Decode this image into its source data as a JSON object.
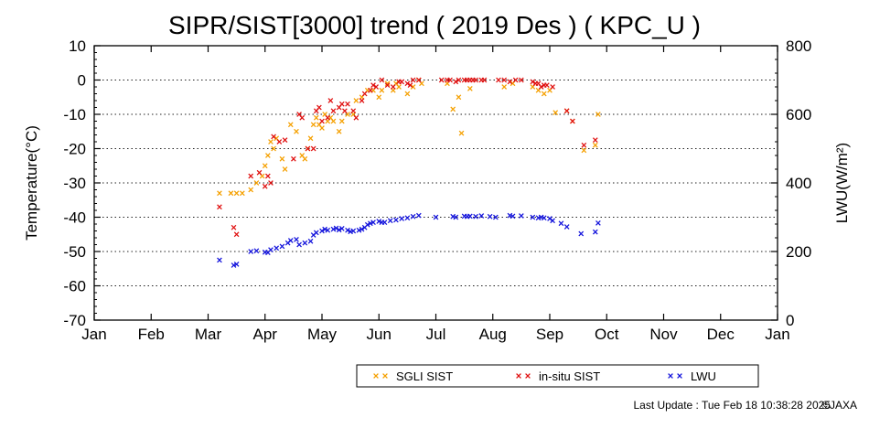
{
  "chart_data": {
    "type": "scatter",
    "title": "SIPR/SIST[3000] trend ( 2019 Des ) ( KPC_U )",
    "ylabel": "Temperature(°C)",
    "y2label": "LWU(W/m²)",
    "ylim": [
      -70,
      10
    ],
    "yticks": [
      10,
      0,
      -10,
      -20,
      -30,
      -40,
      -50,
      -60,
      -70
    ],
    "y2lim": [
      0,
      800
    ],
    "y2ticks": [
      800,
      600,
      400,
      200,
      0
    ],
    "xlim": [
      0,
      12
    ],
    "xticks": [
      "Jan",
      "Feb",
      "Mar",
      "Apr",
      "May",
      "Jun",
      "Jul",
      "Aug",
      "Sep",
      "Oct",
      "Nov",
      "Dec",
      "Jan"
    ],
    "grid": "horizontal dotted",
    "legend_position": "bottom-right",
    "colors": {
      "sgli": "#f5a000",
      "insitu": "#e01010",
      "lwu": "#1414dc"
    },
    "series": [
      {
        "name": "SGLI SIST",
        "axis": "left",
        "color": "#f5a000",
        "points": [
          [
            2.2,
            -33
          ],
          [
            2.4,
            -33
          ],
          [
            2.5,
            -33
          ],
          [
            2.6,
            -33
          ],
          [
            2.75,
            -32
          ],
          [
            2.85,
            -30
          ],
          [
            2.95,
            -28
          ],
          [
            3.0,
            -25
          ],
          [
            3.05,
            -22
          ],
          [
            3.1,
            -18
          ],
          [
            3.15,
            -20
          ],
          [
            3.2,
            -17
          ],
          [
            3.3,
            -23
          ],
          [
            3.35,
            -26
          ],
          [
            3.45,
            -13
          ],
          [
            3.55,
            -15
          ],
          [
            3.65,
            -22
          ],
          [
            3.7,
            -23
          ],
          [
            3.75,
            -20
          ],
          [
            3.8,
            -17
          ],
          [
            3.85,
            -13
          ],
          [
            3.9,
            -11
          ],
          [
            3.95,
            -13
          ],
          [
            4.0,
            -14
          ],
          [
            4.05,
            -10
          ],
          [
            4.1,
            -12
          ],
          [
            4.15,
            -11
          ],
          [
            4.2,
            -12
          ],
          [
            4.3,
            -15
          ],
          [
            4.35,
            -12
          ],
          [
            4.45,
            -10
          ],
          [
            4.55,
            -10
          ],
          [
            4.6,
            -6
          ],
          [
            4.7,
            -5
          ],
          [
            4.8,
            -3
          ],
          [
            4.9,
            -3
          ],
          [
            5.0,
            -5
          ],
          [
            5.05,
            -3
          ],
          [
            5.15,
            -1
          ],
          [
            5.25,
            -3
          ],
          [
            5.3,
            -1
          ],
          [
            5.35,
            -2
          ],
          [
            5.5,
            -4
          ],
          [
            5.6,
            -2
          ],
          [
            5.7,
            0
          ],
          [
            5.75,
            -1
          ],
          [
            6.2,
            -1
          ],
          [
            6.3,
            -8.5
          ],
          [
            6.4,
            -5
          ],
          [
            6.45,
            -15.5
          ],
          [
            6.6,
            -2.5
          ],
          [
            7.2,
            -2
          ],
          [
            7.35,
            -1
          ],
          [
            7.7,
            -2
          ],
          [
            7.8,
            -3
          ],
          [
            7.9,
            -4
          ],
          [
            8.0,
            -3
          ],
          [
            8.1,
            -9.5
          ],
          [
            8.3,
            -9
          ],
          [
            8.4,
            -12
          ],
          [
            8.6,
            -20.5
          ],
          [
            8.8,
            -19
          ],
          [
            8.85,
            -10
          ]
        ]
      },
      {
        "name": "in-situ SIST",
        "axis": "left",
        "color": "#e01010",
        "points": [
          [
            2.2,
            -37
          ],
          [
            2.45,
            -43
          ],
          [
            2.5,
            -45
          ],
          [
            2.75,
            -28
          ],
          [
            2.9,
            -27
          ],
          [
            3.0,
            -31
          ],
          [
            3.05,
            -28
          ],
          [
            3.1,
            -30
          ],
          [
            3.15,
            -16.5
          ],
          [
            3.25,
            -18
          ],
          [
            3.35,
            -17.5
          ],
          [
            3.5,
            -23
          ],
          [
            3.6,
            -10
          ],
          [
            3.65,
            -11
          ],
          [
            3.75,
            -20
          ],
          [
            3.85,
            -20
          ],
          [
            3.9,
            -9
          ],
          [
            3.95,
            -8
          ],
          [
            4.0,
            -12
          ],
          [
            4.1,
            -11
          ],
          [
            4.15,
            -6
          ],
          [
            4.2,
            -9
          ],
          [
            4.3,
            -8
          ],
          [
            4.35,
            -7
          ],
          [
            4.4,
            -9
          ],
          [
            4.45,
            -7
          ],
          [
            4.55,
            -9
          ],
          [
            4.6,
            -11
          ],
          [
            4.7,
            -6
          ],
          [
            4.75,
            -4
          ],
          [
            4.85,
            -3
          ],
          [
            4.9,
            -1.5
          ],
          [
            4.95,
            -2
          ],
          [
            5.05,
            0
          ],
          [
            5.15,
            -1.5
          ],
          [
            5.25,
            -2
          ],
          [
            5.35,
            -0.5
          ],
          [
            5.4,
            -0.5
          ],
          [
            5.5,
            -1
          ],
          [
            5.55,
            -1.5
          ],
          [
            5.6,
            0
          ],
          [
            5.7,
            0
          ],
          [
            6.1,
            0
          ],
          [
            6.2,
            0
          ],
          [
            6.25,
            0
          ],
          [
            6.35,
            -0.5
          ],
          [
            6.4,
            0
          ],
          [
            6.5,
            0
          ],
          [
            6.55,
            0
          ],
          [
            6.6,
            0
          ],
          [
            6.65,
            0
          ],
          [
            6.7,
            0
          ],
          [
            6.8,
            0
          ],
          [
            6.85,
            0
          ],
          [
            7.1,
            0
          ],
          [
            7.2,
            0
          ],
          [
            7.3,
            -0.5
          ],
          [
            7.4,
            0
          ],
          [
            7.5,
            0
          ],
          [
            7.7,
            -0.5
          ],
          [
            7.75,
            -1
          ],
          [
            7.8,
            -1
          ],
          [
            7.85,
            -2
          ],
          [
            7.9,
            -1.5
          ],
          [
            7.95,
            -1.5
          ],
          [
            8.05,
            -2
          ],
          [
            8.3,
            -9
          ],
          [
            8.4,
            -12
          ],
          [
            8.6,
            -19
          ],
          [
            8.8,
            -17.5
          ]
        ]
      },
      {
        "name": "LWU",
        "axis": "right",
        "color": "#1414dc",
        "points": [
          [
            2.2,
            175
          ],
          [
            2.45,
            160
          ],
          [
            2.5,
            163
          ],
          [
            2.75,
            200
          ],
          [
            2.85,
            202
          ],
          [
            3.0,
            198
          ],
          [
            3.05,
            197
          ],
          [
            3.1,
            205
          ],
          [
            3.2,
            210
          ],
          [
            3.3,
            215
          ],
          [
            3.4,
            225
          ],
          [
            3.45,
            232
          ],
          [
            3.55,
            235
          ],
          [
            3.6,
            220
          ],
          [
            3.7,
            225
          ],
          [
            3.8,
            230
          ],
          [
            3.85,
            248
          ],
          [
            3.9,
            255
          ],
          [
            4.0,
            260
          ],
          [
            4.05,
            265
          ],
          [
            4.1,
            262
          ],
          [
            4.2,
            265
          ],
          [
            4.25,
            268
          ],
          [
            4.3,
            263
          ],
          [
            4.35,
            267
          ],
          [
            4.45,
            262
          ],
          [
            4.5,
            258
          ],
          [
            4.55,
            260
          ],
          [
            4.65,
            262
          ],
          [
            4.7,
            265
          ],
          [
            4.75,
            270
          ],
          [
            4.8,
            278
          ],
          [
            4.85,
            282
          ],
          [
            4.9,
            285
          ],
          [
            5.0,
            288
          ],
          [
            5.05,
            285
          ],
          [
            5.1,
            285
          ],
          [
            5.2,
            290
          ],
          [
            5.3,
            292
          ],
          [
            5.4,
            296
          ],
          [
            5.5,
            298
          ],
          [
            5.6,
            302
          ],
          [
            5.7,
            305
          ],
          [
            6.0,
            300
          ],
          [
            6.3,
            302
          ],
          [
            6.35,
            300
          ],
          [
            6.5,
            303
          ],
          [
            6.55,
            302
          ],
          [
            6.6,
            303
          ],
          [
            6.7,
            302
          ],
          [
            6.8,
            304
          ],
          [
            6.95,
            302
          ],
          [
            7.05,
            300
          ],
          [
            7.3,
            305
          ],
          [
            7.35,
            303
          ],
          [
            7.5,
            304
          ],
          [
            7.7,
            300
          ],
          [
            7.8,
            298
          ],
          [
            7.85,
            300
          ],
          [
            7.9,
            298
          ],
          [
            8.0,
            296
          ],
          [
            8.05,
            290
          ],
          [
            8.2,
            282
          ],
          [
            8.3,
            272
          ],
          [
            8.55,
            252
          ],
          [
            8.8,
            257
          ],
          [
            8.85,
            283
          ]
        ]
      }
    ]
  },
  "footer": {
    "last_update": "Last Update : Tue Feb 18 10:38:28 2025",
    "copyright": "©JAXA"
  }
}
